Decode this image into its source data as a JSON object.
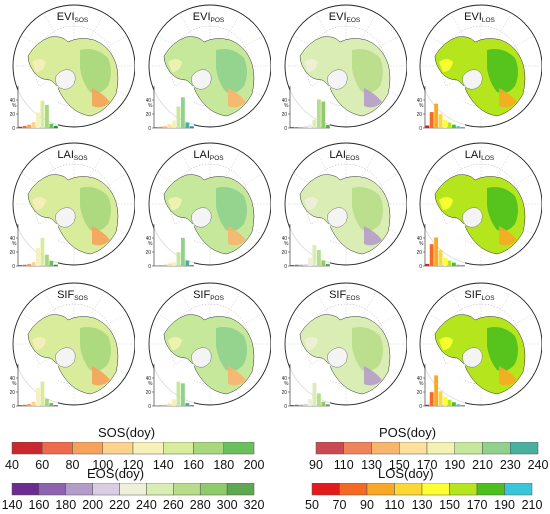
{
  "panels": [
    {
      "base": "EVI",
      "sub": "SOS",
      "palette": "sos",
      "bars": [
        0.03,
        0.05,
        0.08,
        0.14,
        0.37,
        0.65,
        0.55,
        0.1,
        0.05
      ]
    },
    {
      "base": "EVI",
      "sub": "POS",
      "palette": "pos",
      "bars": [
        0.02,
        0.03,
        0.04,
        0.09,
        0.18,
        0.51,
        0.73,
        0.13,
        0.04
      ]
    },
    {
      "base": "EVI",
      "sub": "EOS",
      "palette": "eos",
      "bars": [
        0.02,
        0.02,
        0.02,
        0.04,
        0.08,
        0.2,
        0.68,
        0.63,
        0.07
      ]
    },
    {
      "base": "EVI",
      "sub": "LOS",
      "palette": "los",
      "bars": [
        0.06,
        0.38,
        0.58,
        0.33,
        0.19,
        0.13,
        0.08,
        0.04,
        0.02
      ]
    },
    {
      "base": "LAI",
      "sub": "SOS",
      "palette": "sos",
      "bars": [
        0.02,
        0.03,
        0.05,
        0.09,
        0.43,
        0.67,
        0.27,
        0.12,
        0.03
      ]
    },
    {
      "base": "LAI",
      "sub": "POS",
      "palette": "pos",
      "bars": [
        0.01,
        0.02,
        0.03,
        0.06,
        0.09,
        0.33,
        0.67,
        0.13,
        0.02
      ]
    },
    {
      "base": "LAI",
      "sub": "EOS",
      "palette": "eos",
      "bars": [
        0.02,
        0.03,
        0.03,
        0.04,
        0.2,
        0.5,
        0.38,
        0.13,
        0.05
      ]
    },
    {
      "base": "LAI",
      "sub": "LOS",
      "palette": "los",
      "bars": [
        0.05,
        0.52,
        0.68,
        0.38,
        0.19,
        0.13,
        0.08,
        0.03,
        0.02
      ]
    },
    {
      "base": "SIF",
      "sub": "SOS",
      "palette": "sos",
      "bars": [
        0.02,
        0.03,
        0.05,
        0.1,
        0.43,
        0.58,
        0.17,
        0.07,
        0.02
      ]
    },
    {
      "base": "SIF",
      "sub": "POS",
      "palette": "pos",
      "bars": [
        0.01,
        0.02,
        0.03,
        0.06,
        0.16,
        0.58,
        0.54,
        0.07,
        0.02
      ]
    },
    {
      "base": "SIF",
      "sub": "EOS",
      "palette": "eos",
      "bars": [
        0.02,
        0.03,
        0.03,
        0.05,
        0.17,
        0.55,
        0.3,
        0.1,
        0.04
      ]
    },
    {
      "base": "SIF",
      "sub": "LOS",
      "palette": "los",
      "bars": [
        0.03,
        0.33,
        0.73,
        0.35,
        0.22,
        0.15,
        0.09,
        0.04,
        0.02
      ]
    }
  ],
  "histogram": {
    "ylabel": "%",
    "ticks": [
      {
        "v": 0,
        "t": "0"
      },
      {
        "v": 20,
        "t": "20"
      },
      {
        "v": 40,
        "t": "40"
      }
    ],
    "ymax": 60
  },
  "palettes": {
    "sos": [
      "#c9282e",
      "#ee6a4a",
      "#f6a25a",
      "#fbd38c",
      "#f6f0b9",
      "#d8ec9c",
      "#a8d87c",
      "#6cbf5e",
      "#1d8c45"
    ],
    "pos": [
      "#c94b52",
      "#f0835a",
      "#f8b56e",
      "#fce09b",
      "#f3f2b3",
      "#c6e89a",
      "#8fd18d",
      "#48b09c",
      "#2d7fba"
    ],
    "eos": [
      "#6a2c8f",
      "#8f62ad",
      "#b49cc9",
      "#d9cde4",
      "#eef0d8",
      "#d9edb4",
      "#b8dd8a",
      "#8fca6c",
      "#5fa852"
    ],
    "los": [
      "#e31a1c",
      "#f46a25",
      "#f9a825",
      "#fdd835",
      "#ffff33",
      "#b5e61d",
      "#4cc01f",
      "#39c6d8",
      "#1aa3dc"
    ]
  },
  "legends": {
    "sos": {
      "title": "SOS(doy)",
      "ticks": [
        "40",
        "60",
        "80",
        "100",
        "120",
        "140",
        "160",
        "180",
        "200"
      ],
      "colors": [
        "#c9282e",
        "#ee6a4a",
        "#f6a25a",
        "#fbd38c",
        "#f6f0b9",
        "#d8ec9c",
        "#a8d87c",
        "#6cbf5e"
      ]
    },
    "pos": {
      "title": "POS(doy)",
      "ticks": [
        "90",
        "110",
        "130",
        "150",
        "170",
        "190",
        "210",
        "230",
        "240"
      ],
      "colors": [
        "#c94b52",
        "#f0835a",
        "#f8b56e",
        "#fce09b",
        "#f3f2b3",
        "#c6e89a",
        "#8fd18d",
        "#48b09c",
        "#2d7fba"
      ]
    },
    "eos": {
      "title": "EOS(doy)",
      "ticks": [
        "140",
        "160",
        "180",
        "200",
        "220",
        "240",
        "260",
        "280",
        "300",
        "320"
      ],
      "colors": [
        "#6a2c8f",
        "#8f62ad",
        "#b49cc9",
        "#d9cde4",
        "#eef0d8",
        "#d9edb4",
        "#b8dd8a",
        "#8fca6c",
        "#5fa852"
      ]
    },
    "los": {
      "title": "LOS(doy)",
      "ticks": [
        "50",
        "70",
        "90",
        "110",
        "130",
        "150",
        "170",
        "190",
        "210"
      ],
      "colors": [
        "#e31a1c",
        "#f46a25",
        "#f9a825",
        "#fdd835",
        "#ffff33",
        "#b5e61d",
        "#4cc01f",
        "#39c6d8"
      ]
    }
  }
}
